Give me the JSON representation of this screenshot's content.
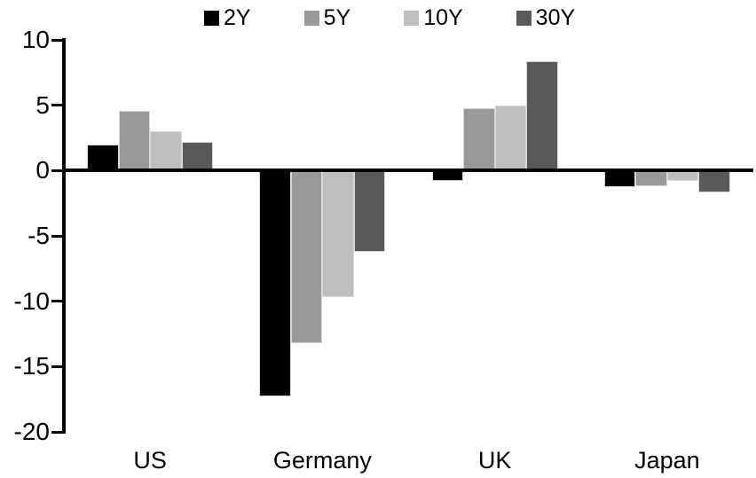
{
  "chart_data": {
    "type": "bar",
    "title": "",
    "xlabel": "",
    "ylabel": "",
    "categories": [
      "US",
      "Germany",
      "UK",
      "Japan"
    ],
    "series": [
      {
        "name": "2Y",
        "color": "#000000",
        "values": [
          2.0,
          -17.3,
          -0.8,
          -1.3
        ]
      },
      {
        "name": "5Y",
        "color": "#999999",
        "values": [
          4.6,
          -13.2,
          4.8,
          -1.2
        ]
      },
      {
        "name": "10Y",
        "color": "#bfbfbf",
        "values": [
          3.0,
          -9.7,
          5.0,
          -0.8
        ]
      },
      {
        "name": "30Y",
        "color": "#595959",
        "values": [
          2.2,
          -6.2,
          8.4,
          -1.7
        ]
      }
    ],
    "ylim": [
      -20,
      10
    ],
    "yticks": [
      10,
      5,
      0,
      -5,
      -10,
      -15,
      -20
    ],
    "grid": false,
    "legend_position": "top",
    "axis_color": "#000000",
    "background": "#ffffff"
  }
}
